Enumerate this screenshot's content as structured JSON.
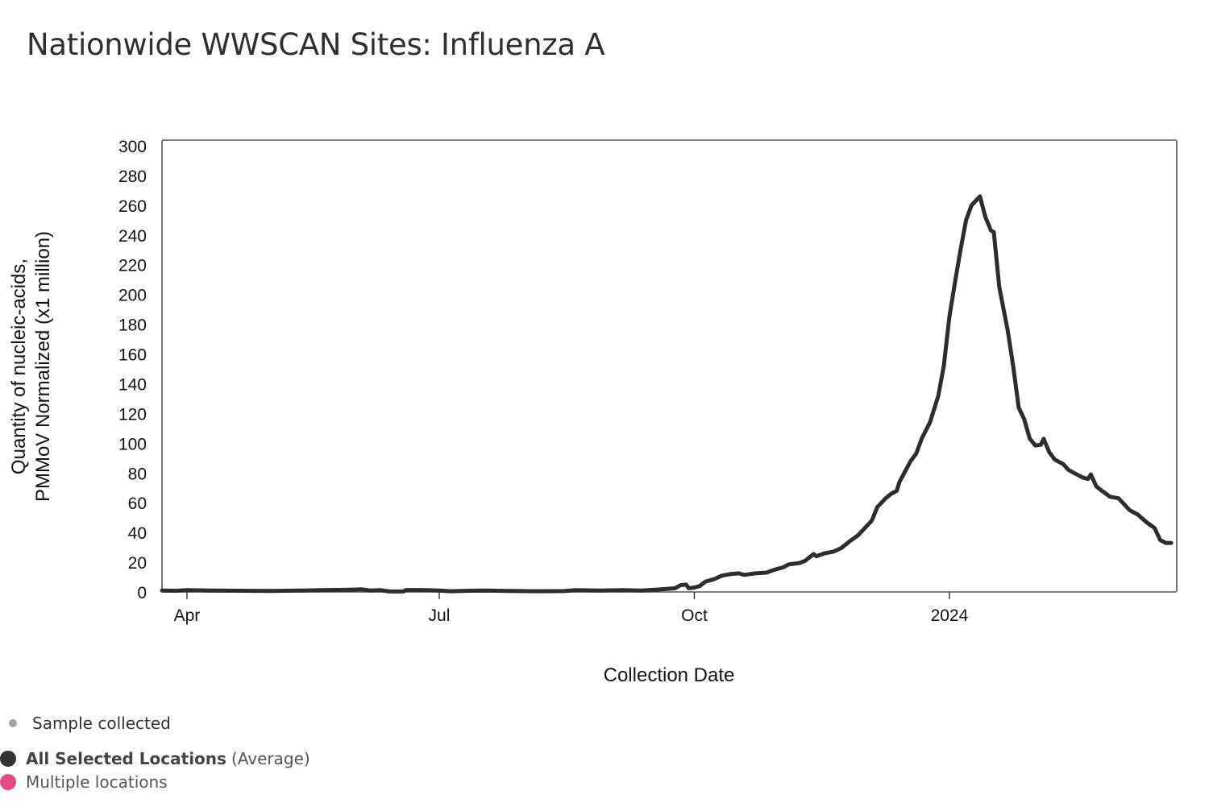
{
  "title": "Nationwide WWSCAN Sites: Influenza A",
  "colors": {
    "line": "#2d2d2d",
    "sample_dot": "#a0a3ad",
    "all_dot": "#333333",
    "multi_dot": "#e44a82",
    "frame": "#555555"
  },
  "legend": {
    "sample": "Sample collected",
    "all_bold": "All Selected Locations",
    "all_sub": "(Average)",
    "multiple": "Multiple locations"
  },
  "chart_data": {
    "type": "line",
    "title": "Nationwide WWSCAN Sites: Influenza A",
    "xlabel": "Collection Date",
    "ylabel_line1": "Quantity of nucleic-acids,",
    "ylabel_line2": "PMMoV Normalized (x1 million)",
    "ylim": [
      0,
      300
    ],
    "yticks": [
      0,
      20,
      40,
      60,
      80,
      100,
      120,
      140,
      160,
      180,
      200,
      220,
      240,
      260,
      280,
      300
    ],
    "x_domain": [
      "2023-03-23",
      "2024-03-23"
    ],
    "xticks": [
      {
        "date": "2023-04-01",
        "label": "Apr"
      },
      {
        "date": "2023-07-01",
        "label": "Jul"
      },
      {
        "date": "2023-10-01",
        "label": "Oct"
      },
      {
        "date": "2024-01-01",
        "label": "2024"
      }
    ],
    "series": [
      {
        "name": "All Selected Locations (Average)",
        "points": [
          [
            "2023-03-23",
            1
          ],
          [
            "2023-03-28",
            0.8
          ],
          [
            "2023-04-01",
            1.2
          ],
          [
            "2023-04-10",
            1.0
          ],
          [
            "2023-04-20",
            0.8
          ],
          [
            "2023-05-01",
            0.7
          ],
          [
            "2023-05-12",
            0.9
          ],
          [
            "2023-05-22",
            1.3
          ],
          [
            "2023-05-30",
            1.5
          ],
          [
            "2023-06-03",
            1.8
          ],
          [
            "2023-06-06",
            1.0
          ],
          [
            "2023-06-10",
            1.2
          ],
          [
            "2023-06-13",
            0.3
          ],
          [
            "2023-06-18",
            0.3
          ],
          [
            "2023-06-19",
            1.3
          ],
          [
            "2023-06-25",
            1.3
          ],
          [
            "2023-07-01",
            0.9
          ],
          [
            "2023-07-05",
            0.5
          ],
          [
            "2023-07-12",
            0.8
          ],
          [
            "2023-07-18",
            0.9
          ],
          [
            "2023-07-26",
            0.7
          ],
          [
            "2023-08-05",
            0.5
          ],
          [
            "2023-08-15",
            0.6
          ],
          [
            "2023-08-19",
            1.2
          ],
          [
            "2023-08-28",
            1.0
          ],
          [
            "2023-09-05",
            1.2
          ],
          [
            "2023-09-12",
            1.0
          ],
          [
            "2023-09-17",
            1.5
          ],
          [
            "2023-09-21",
            2.0
          ],
          [
            "2023-09-24",
            2.5
          ],
          [
            "2023-09-26",
            4.5
          ],
          [
            "2023-09-28",
            5
          ],
          [
            "2023-09-29",
            2.5
          ],
          [
            "2023-10-01",
            3
          ],
          [
            "2023-10-03",
            4
          ],
          [
            "2023-10-05",
            7
          ],
          [
            "2023-10-08",
            8.5
          ],
          [
            "2023-10-11",
            11
          ],
          [
            "2023-10-14",
            12
          ],
          [
            "2023-10-17",
            12.5
          ],
          [
            "2023-10-19",
            11.5
          ],
          [
            "2023-10-23",
            12.5
          ],
          [
            "2023-10-27",
            13
          ],
          [
            "2023-10-30",
            15
          ],
          [
            "2023-11-02",
            16.5
          ],
          [
            "2023-11-04",
            18.5
          ],
          [
            "2023-11-08",
            19.5
          ],
          [
            "2023-11-10",
            21
          ],
          [
            "2023-11-13",
            25.5
          ],
          [
            "2023-11-14",
            24
          ],
          [
            "2023-11-17",
            26
          ],
          [
            "2023-11-20",
            27
          ],
          [
            "2023-11-23",
            29.5
          ],
          [
            "2023-11-26",
            34
          ],
          [
            "2023-11-29",
            38
          ],
          [
            "2023-12-01",
            42
          ],
          [
            "2023-12-04",
            48
          ],
          [
            "2023-12-06",
            57
          ],
          [
            "2023-12-09",
            63
          ],
          [
            "2023-12-11",
            66
          ],
          [
            "2023-12-13",
            68
          ],
          [
            "2023-12-14",
            74
          ],
          [
            "2023-12-16",
            81
          ],
          [
            "2023-12-18",
            88
          ],
          [
            "2023-12-20",
            93
          ],
          [
            "2023-12-22",
            103
          ],
          [
            "2023-12-25",
            114
          ],
          [
            "2023-12-28",
            132
          ],
          [
            "2023-12-30",
            152
          ],
          [
            "2024-01-01",
            185
          ],
          [
            "2024-01-03",
            208
          ],
          [
            "2024-01-05",
            230
          ],
          [
            "2024-01-07",
            250
          ],
          [
            "2024-01-09",
            260
          ],
          [
            "2024-01-11",
            264
          ],
          [
            "2024-01-12",
            266
          ],
          [
            "2024-01-14",
            252
          ],
          [
            "2024-01-16",
            243
          ],
          [
            "2024-01-17",
            242
          ],
          [
            "2024-01-19",
            205
          ],
          [
            "2024-01-22",
            176
          ],
          [
            "2024-01-24",
            152
          ],
          [
            "2024-01-26",
            124
          ],
          [
            "2024-01-28",
            116
          ],
          [
            "2024-01-30",
            103
          ],
          [
            "2024-02-01",
            98.5
          ],
          [
            "2024-02-03",
            99
          ],
          [
            "2024-02-04",
            103
          ],
          [
            "2024-02-06",
            94
          ],
          [
            "2024-02-08",
            89
          ],
          [
            "2024-02-11",
            86
          ],
          [
            "2024-02-13",
            82
          ],
          [
            "2024-02-15",
            80
          ],
          [
            "2024-02-18",
            77
          ],
          [
            "2024-02-20",
            76
          ],
          [
            "2024-02-21",
            79
          ],
          [
            "2024-02-23",
            71
          ],
          [
            "2024-02-25",
            68
          ],
          [
            "2024-02-28",
            64
          ],
          [
            "2024-03-02",
            63
          ],
          [
            "2024-03-04",
            59
          ],
          [
            "2024-03-06",
            55
          ],
          [
            "2024-03-09",
            52
          ],
          [
            "2024-03-12",
            47
          ],
          [
            "2024-03-15",
            43
          ],
          [
            "2024-03-17",
            35
          ],
          [
            "2024-03-19",
            33
          ],
          [
            "2024-03-21",
            33
          ]
        ]
      }
    ]
  }
}
